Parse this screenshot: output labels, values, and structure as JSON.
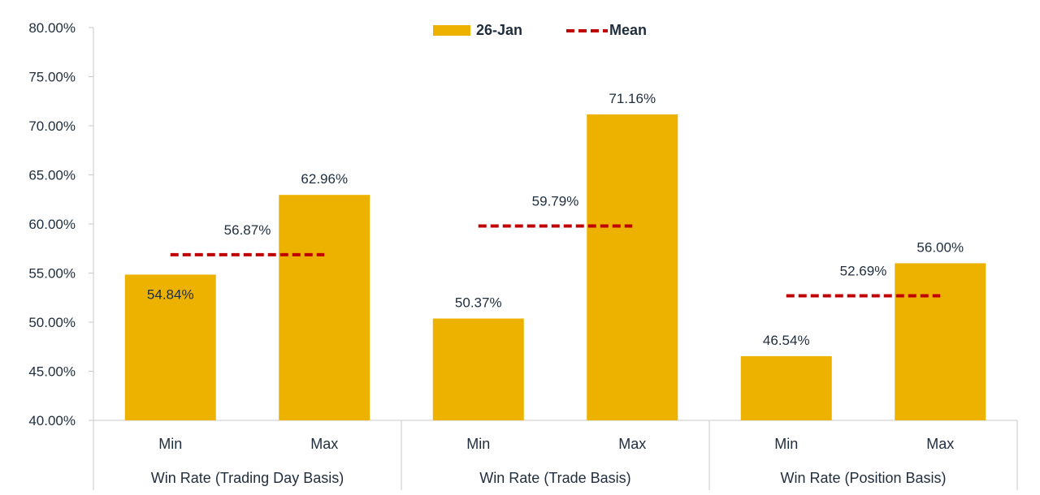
{
  "chart_data": {
    "type": "bar",
    "ylim": [
      40,
      80
    ],
    "yticks": [
      "40.00%",
      "45.00%",
      "50.00%",
      "55.00%",
      "60.00%",
      "65.00%",
      "70.00%",
      "75.00%",
      "80.00%"
    ],
    "groups": [
      {
        "name": "Win Rate (Trading Day Basis)",
        "categories": [
          "Min",
          "Max"
        ],
        "values": [
          54.84,
          62.96
        ],
        "labels": [
          "54.84%",
          "62.96%"
        ],
        "mean": 56.87,
        "mean_label": "56.87%"
      },
      {
        "name": "Win Rate (Trade Basis)",
        "categories": [
          "Min",
          "Max"
        ],
        "values": [
          50.37,
          71.16
        ],
        "labels": [
          "50.37%",
          "71.16%"
        ],
        "mean": 59.79,
        "mean_label": "59.79%"
      },
      {
        "name": "Win Rate (Position Basis)",
        "categories": [
          "Min",
          "Max"
        ],
        "values": [
          46.54,
          56.0
        ],
        "labels": [
          "46.54%",
          "56.00%"
        ],
        "mean": 52.69,
        "mean_label": "52.69%"
      }
    ],
    "series": [
      {
        "name": "26-Jan",
        "kind": "bar",
        "color": "#EDB200"
      },
      {
        "name": "Mean",
        "kind": "dashed-line",
        "color": "#C00000"
      }
    ],
    "legend": "top-center",
    "grid": false
  }
}
